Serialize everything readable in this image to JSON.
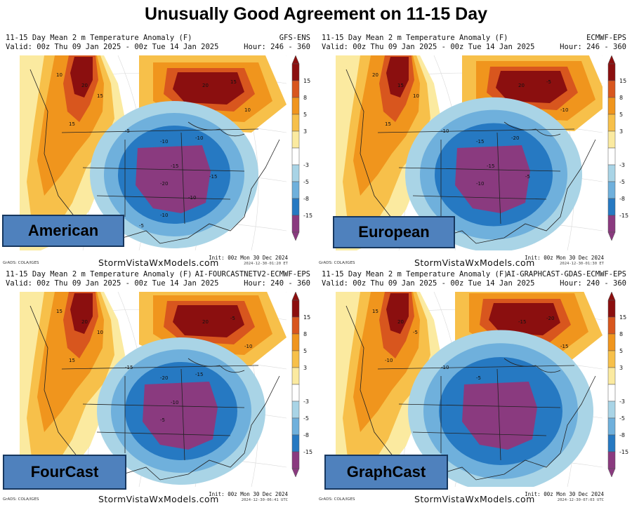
{
  "title": "Unusually Good Agreement on 11-15 Day",
  "colorbar": {
    "ticks": [
      "15",
      "8",
      "5",
      "3",
      "-3",
      "-5",
      "-8",
      "-15"
    ],
    "colors": {
      "dark_red": "#8b0f0f",
      "red_orange": "#d8561e",
      "orange": "#f0951d",
      "light_orange": "#f7c04a",
      "yellow": "#fbeaa0",
      "white": "#ffffff",
      "light_blue": "#a9d4e6",
      "blue": "#6fb0dc",
      "dark_blue": "#2679c2",
      "purple": "#8a3a7f"
    }
  },
  "panels": [
    {
      "id": "american",
      "header_line1": "11-15 Day Mean 2 m Temperature Anomaly (F)",
      "model": "GFS-ENS",
      "header_line2": "Valid: 00z Thu 09 Jan 2025 - 00z Tue 14 Jan 2025",
      "hour": "Hour: 246 - 360",
      "brand": "StormVistaWxModels.com",
      "grads": "GrADS: COLA/IGES",
      "init": "Init: 00z Mon 30 Dec 2024",
      "timestamp": "2024-12-30-01:20 ET",
      "label": "American",
      "contour_labels": [
        "10",
        "20",
        "15",
        "15",
        "20",
        "15",
        "10",
        "-5",
        "-10",
        "-10",
        "-15",
        "-20",
        "-15",
        "-10",
        "-10",
        "-5"
      ]
    },
    {
      "id": "european",
      "header_line1": "11-15 Day Mean 2 m Temperature Anomaly (F)",
      "model": "ECMWF-EPS",
      "header_line2": "Valid: 00z Thu 09 Jan 2025 - 00z Tue 14 Jan 2025",
      "hour": "Hour: 246 - 360",
      "brand": "StormVistaWxModels.com",
      "grads": "GrADS: COLA/IGES",
      "init": "Init: 00z Mon 30 Dec 2024",
      "timestamp": "2024-12-30-01:30 ET",
      "label": "European",
      "contour_labels": [
        "20",
        "15",
        "10",
        "15",
        "20",
        "-5",
        "-10",
        "-10",
        "-15",
        "-20",
        "-15",
        "-10",
        "-5"
      ]
    },
    {
      "id": "fourcast",
      "header_line1": "11-15 Day Mean 2 m Temperature Anomaly (F)",
      "model": "AI-FOURCASTNETV2-ECMWF-EPS",
      "header_line2": "Valid: 00z Thu 09 Jan 2025 - 00z Tue 14 Jan 2025",
      "hour": "Hour: 240 - 360",
      "brand": "StormVistaWxModels.com",
      "grads": "GrADS: COLA/IGES",
      "init": "Init: 00z Mon 30 Dec 2024",
      "timestamp": "2024-12-30-06:41 UTC",
      "label": "FourCast",
      "contour_labels": [
        "15",
        "20",
        "10",
        "15",
        "20",
        "-5",
        "-10",
        "-15",
        "-20",
        "-15",
        "-10",
        "-5"
      ]
    },
    {
      "id": "graphcast",
      "header_line1": "11-15 Day Mean 2 m Temperature Anomaly (F)",
      "model": "AI-GRAPHCAST-GDAS-ECMWF-EPS",
      "header_line2": "Valid: 00z Thu 09 Jan 2025 - 00z Tue 14 Jan 2025",
      "hour": "Hour: 240 - 360",
      "brand": "StormVistaWxModels.com",
      "grads": "GrADS: COLA/IGES",
      "init": "Init: 00z Mon 30 Dec 2024",
      "timestamp": "2024-12-30-07:03 UTC",
      "label": "GraphCast",
      "contour_labels": [
        "15",
        "20",
        "-5",
        "-10",
        "-15",
        "-20",
        "-15",
        "-10",
        "-5"
      ]
    }
  ]
}
